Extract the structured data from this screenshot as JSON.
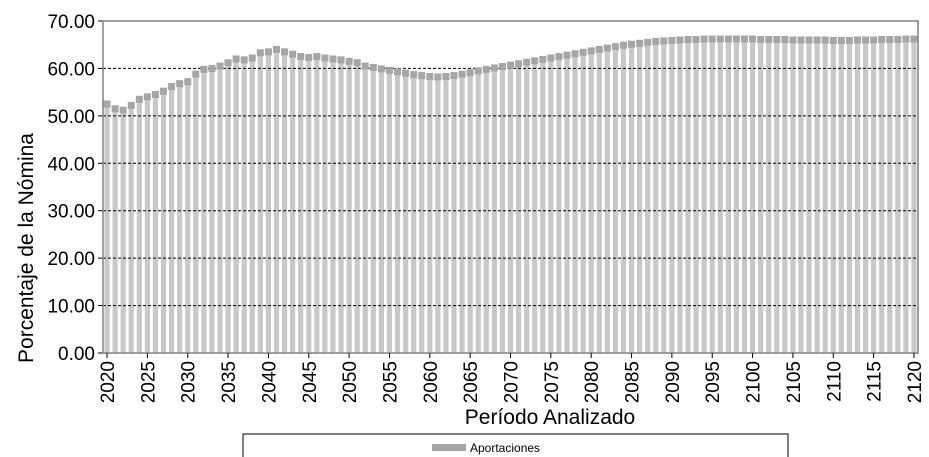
{
  "chart_data": {
    "type": "bar",
    "y_label": "Porcentaje de la Nómina",
    "x_label": "Período Analizado",
    "categories": [
      "2020",
      null,
      null,
      null,
      null,
      "2025",
      null,
      null,
      null,
      null,
      "2030",
      null,
      null,
      null,
      null,
      "2035",
      null,
      null,
      null,
      null,
      "2040",
      null,
      null,
      null,
      null,
      "2045",
      null,
      null,
      null,
      null,
      "2050",
      null,
      null,
      null,
      null,
      "2055",
      null,
      null,
      null,
      null,
      "2060",
      null,
      null,
      null,
      null,
      "2065",
      null,
      null,
      null,
      null,
      "2070",
      null,
      null,
      null,
      null,
      "2075",
      null,
      null,
      null,
      null,
      "2080",
      null,
      null,
      null,
      null,
      "2085",
      null,
      null,
      null,
      null,
      "2090",
      null,
      null,
      null,
      null,
      "2095",
      null,
      null,
      null,
      null,
      "2100",
      null,
      null,
      null,
      null,
      "2105",
      null,
      null,
      null,
      null,
      "2110",
      null,
      null,
      null,
      null,
      "2115",
      null,
      null,
      null,
      null,
      "2120"
    ],
    "series": [
      {
        "name": "Aportaciones",
        "color": "#a6a6a6",
        "bar_color": "#c8c8c8",
        "values": [
          52.5,
          51.5,
          51.2,
          52.2,
          53.5,
          54,
          54.5,
          55.2,
          56.2,
          56.8,
          57.2,
          58.8,
          59.8,
          60,
          60.5,
          61.2,
          62,
          61.8,
          62.2,
          63.3,
          63.5,
          64,
          63.5,
          63,
          62.5,
          62.3,
          62.5,
          62.2,
          62,
          61.8,
          61.5,
          61.2,
          60.5,
          60.2,
          59.9,
          59.6,
          59.3,
          59,
          58.7,
          58.5,
          58.3,
          58.2,
          58.3,
          58.5,
          58.8,
          59.1,
          59.5,
          59.8,
          60.1,
          60.4,
          60.7,
          61,
          61.3,
          61.6,
          61.9,
          62.2,
          62.5,
          62.8,
          63.1,
          63.4,
          63.7,
          64,
          64.3,
          64.6,
          64.9,
          65.1,
          65.3,
          65.5,
          65.7,
          65.8,
          65.9,
          66,
          66.1,
          66.1,
          66.2,
          66.2,
          66.2,
          66.2,
          66.2,
          66.2,
          66.2,
          66.1,
          66.1,
          66.1,
          66.1,
          66,
          66,
          66,
          66,
          66,
          65.9,
          65.9,
          65.9,
          66,
          66,
          66,
          66.1,
          66.1,
          66.1,
          66.2,
          66.2
        ]
      }
    ],
    "ylim": [
      0,
      70
    ],
    "yticks": [
      {
        "value": 0,
        "label": "0.00"
      },
      {
        "value": 10,
        "label": "10.00"
      },
      {
        "value": 20,
        "label": "20.00"
      },
      {
        "value": 30,
        "label": "30.00"
      },
      {
        "value": 40,
        "label": "40.00"
      },
      {
        "value": 50,
        "label": "50.00"
      },
      {
        "value": 60,
        "label": "60.00"
      },
      {
        "value": 70,
        "label": "70.00"
      }
    ],
    "grid": true,
    "legend": "bottom"
  }
}
